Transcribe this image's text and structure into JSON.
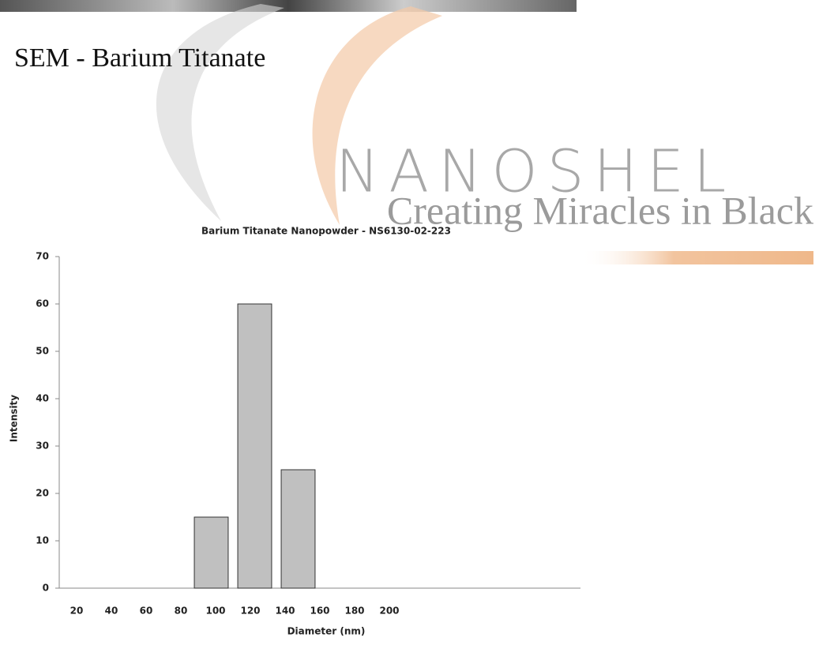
{
  "heading": "SEM - Barium Titanate",
  "watermark": {
    "brand": "NANOSHEL",
    "tagline": "Creating Miracles in Black"
  },
  "chart_data": {
    "type": "bar",
    "title": "Barium Titanate Nanopowder - NS6130-02-223",
    "x_label": "Diameter (nm)",
    "y_label": "Intensity",
    "categories": [
      20,
      40,
      60,
      80,
      100,
      120,
      140,
      160,
      180,
      200,
      null,
      null
    ],
    "values": [
      0,
      0,
      0,
      15,
      60,
      25,
      0,
      0,
      0,
      0,
      0,
      0
    ],
    "color": "#c0c0c0",
    "ylim": [
      0,
      70
    ],
    "yticks": [
      0,
      10,
      20,
      30,
      40,
      50,
      60,
      70
    ],
    "grid": false
  }
}
